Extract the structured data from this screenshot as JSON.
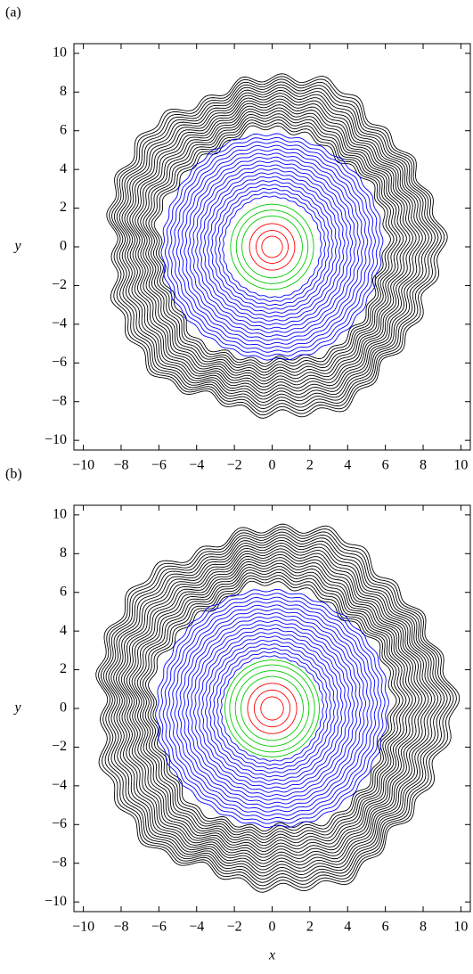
{
  "chart_data": [
    {
      "type": "contour",
      "title": "(a)",
      "ylabel": "y",
      "xlim": [
        -10.5,
        10.5
      ],
      "ylim": [
        -10.5,
        10.5
      ],
      "xticks": [
        {
          "value": -10,
          "label": "−10"
        },
        {
          "value": -8,
          "label": "−8"
        },
        {
          "value": -6,
          "label": "−6"
        },
        {
          "value": -4,
          "label": "−4"
        },
        {
          "value": -2,
          "label": "−2"
        },
        0,
        2,
        4,
        6,
        8,
        10
      ],
      "yticks": [
        {
          "value": -10,
          "label": "−10"
        },
        {
          "value": -8,
          "label": "−8"
        },
        {
          "value": -6,
          "label": "−6"
        },
        {
          "value": -4,
          "label": "−4"
        },
        {
          "value": -2,
          "label": "−2"
        },
        0,
        2,
        4,
        6,
        8,
        10
      ],
      "series": [
        {
          "color": "#000000",
          "values": [
            6.0,
            6.15,
            6.3,
            6.45,
            6.6,
            6.75,
            6.9,
            7.05,
            7.2,
            7.35,
            7.5,
            7.65,
            7.8,
            7.95,
            8.1,
            8.25,
            8.4,
            8.55,
            8.7
          ]
        },
        {
          "color": "#0000ff",
          "values": [
            2.6,
            2.8,
            3.0,
            3.2,
            3.4,
            3.6,
            3.8,
            4.0,
            4.2,
            4.4,
            4.6,
            4.8,
            5.0,
            5.2,
            5.4,
            5.6,
            5.8
          ]
        },
        {
          "color": "#00cc00",
          "values": [
            1.6,
            1.9,
            2.2
          ]
        },
        {
          "color": "#ff0000",
          "values": [
            0.55,
            0.85,
            1.2
          ]
        }
      ]
    },
    {
      "type": "contour",
      "title": "(b)",
      "xlabel": "x",
      "ylabel": "y",
      "xlim": [
        -10.5,
        10.5
      ],
      "ylim": [
        -10.5,
        10.5
      ],
      "xticks": [
        {
          "value": -10,
          "label": "−10"
        },
        {
          "value": -8,
          "label": "−8"
        },
        {
          "value": -6,
          "label": "−6"
        },
        {
          "value": -4,
          "label": "−4"
        },
        {
          "value": -2,
          "label": "−2"
        },
        0,
        2,
        4,
        6,
        8,
        10
      ],
      "yticks": [
        {
          "value": -10,
          "label": "−10"
        },
        {
          "value": -8,
          "label": "−8"
        },
        {
          "value": -6,
          "label": "−6"
        },
        {
          "value": -4,
          "label": "−4"
        },
        {
          "value": -2,
          "label": "−2"
        },
        0,
        2,
        4,
        6,
        8,
        10
      ],
      "series": [
        {
          "color": "#000000",
          "values": [
            6.3,
            6.45,
            6.6,
            6.75,
            6.9,
            7.05,
            7.2,
            7.35,
            7.5,
            7.65,
            7.8,
            7.95,
            8.1,
            8.25,
            8.4,
            8.55,
            8.7,
            8.85,
            9.0,
            9.15,
            9.3
          ]
        },
        {
          "color": "#0000ff",
          "values": [
            2.7,
            2.9,
            3.1,
            3.3,
            3.5,
            3.7,
            3.9,
            4.1,
            4.3,
            4.5,
            4.7,
            4.9,
            5.1,
            5.3,
            5.5,
            5.7,
            5.9,
            6.1
          ]
        },
        {
          "color": "#00cc00",
          "values": [
            1.65,
            1.95,
            2.25,
            2.5
          ]
        },
        {
          "color": "#ff0000",
          "values": [
            0.6,
            0.95,
            1.3
          ]
        }
      ]
    }
  ]
}
